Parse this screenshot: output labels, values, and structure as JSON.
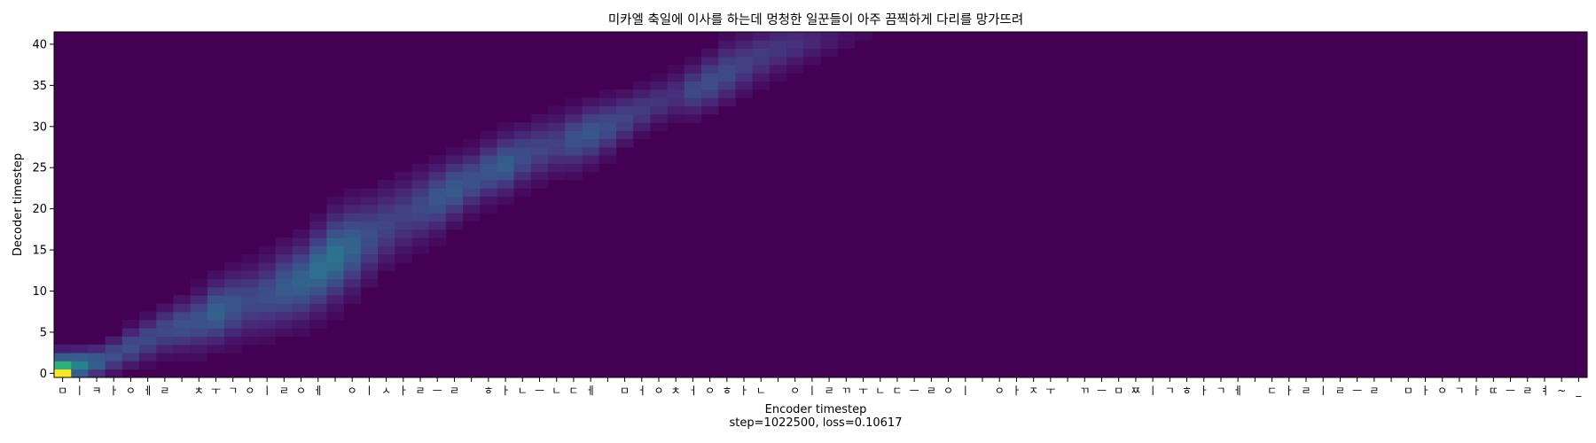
{
  "chart_data": {
    "type": "heatmap",
    "title": "미카엘 축일에 이사를 하는데 멍청한 일꾼들이 아주 끔찍하게 다리를 망가뜨려",
    "xlabel": "Encoder timestep",
    "ylabel": "Decoder timestep",
    "footer": "step=1022500, loss=0.10617",
    "colormap": "viridis",
    "background_color": "#440154",
    "peak_color": "#fde725",
    "ylim": [
      0,
      42
    ],
    "yticks": [
      0,
      5,
      10,
      15,
      20,
      25,
      30,
      35,
      40
    ],
    "x_tokens": [
      "ㅁ",
      "ㅣ",
      "ㅋ",
      "ㅏ",
      "ㅇ",
      "ㅔ",
      "ㄹ",
      " ",
      "ㅊ",
      "ㅜ",
      "ㄱ",
      "ㅇ",
      "ㅣ",
      "ㄹ",
      "ㅇ",
      "ㅔ",
      " ",
      "ㅇ",
      "ㅣ",
      "ㅅ",
      "ㅏ",
      "ㄹ",
      "ㅡ",
      "ㄹ",
      " ",
      "ㅎ",
      "ㅏ",
      "ㄴ",
      "ㅡ",
      "ㄴ",
      "ㄷ",
      "ㅔ",
      " ",
      "ㅁ",
      "ㅓ",
      "ㅇ",
      "ㅊ",
      "ㅓ",
      "ㅇ",
      "ㅎ",
      "ㅏ",
      "ㄴ",
      " ",
      "ㅇ",
      "ㅣ",
      "ㄹ",
      "ㄲ",
      "ㅜ",
      "ㄴ",
      "ㄷ",
      "ㅡ",
      "ㄹ",
      "ㅇ",
      "ㅣ",
      " ",
      "ㅇ",
      "ㅏ",
      "ㅈ",
      "ㅜ",
      " ",
      "ㄲ",
      "ㅡ",
      "ㅁ",
      "ㅉ",
      "ㅣ",
      "ㄱ",
      "ㅎ",
      "ㅏ",
      "ㄱ",
      "ㅔ",
      " ",
      "ㄷ",
      "ㅏ",
      "ㄹ",
      "ㅣ",
      "ㄹ",
      "ㅡ",
      "ㄹ",
      " ",
      "ㅁ",
      "ㅏ",
      "ㅇ",
      "ㄱ",
      "ㅏ",
      "ㄸ",
      "ㅡ",
      "ㄹ",
      "ㅕ",
      "~",
      "_"
    ],
    "alignment_path": [
      [
        0,
        0.0
      ],
      [
        1,
        1.0
      ],
      [
        2,
        1.4
      ],
      [
        3,
        2.2
      ],
      [
        4,
        3.2
      ],
      [
        5,
        4.2
      ],
      [
        6,
        5.2
      ],
      [
        7,
        5.8
      ],
      [
        8,
        6.4
      ],
      [
        9,
        7.4
      ],
      [
        10,
        8.2
      ],
      [
        11,
        8.8
      ],
      [
        12,
        9.4
      ],
      [
        13,
        10.4
      ],
      [
        14,
        11.2
      ],
      [
        15,
        12.6
      ],
      [
        16,
        14.2
      ],
      [
        17,
        15.4
      ],
      [
        18,
        16.6
      ],
      [
        19,
        18.0
      ],
      [
        20,
        19.2
      ],
      [
        21,
        20.2
      ],
      [
        22,
        21.2
      ],
      [
        23,
        22.4
      ],
      [
        24,
        23.4
      ],
      [
        25,
        24.6
      ],
      [
        26,
        25.4
      ],
      [
        27,
        26.4
      ],
      [
        28,
        27.2
      ],
      [
        29,
        27.8
      ],
      [
        30,
        28.4
      ],
      [
        31,
        29.2
      ],
      [
        32,
        30.0
      ],
      [
        33,
        31.0
      ],
      [
        34,
        32.0
      ],
      [
        35,
        33.0
      ],
      [
        36,
        33.8
      ],
      [
        37,
        34.4
      ],
      [
        38,
        35.4
      ],
      [
        39,
        36.6
      ],
      [
        40,
        37.6
      ],
      [
        41,
        38.6
      ],
      [
        42,
        39.4
      ],
      [
        43,
        40.0
      ],
      [
        44,
        40.4
      ],
      [
        45,
        40.8
      ],
      [
        46,
        41.0
      ],
      [
        47,
        41.0
      ],
      [
        48,
        41.0
      ],
      [
        49,
        41.0
      ],
      [
        50,
        41.0
      ],
      [
        51,
        41.0
      ],
      [
        52,
        41.0
      ],
      [
        53,
        41.0
      ],
      [
        54,
        41.0
      ],
      [
        55,
        41.0
      ],
      [
        56,
        41.0
      ],
      [
        57,
        41.0
      ],
      [
        58,
        41.0
      ],
      [
        59,
        41.0
      ]
    ],
    "alignment_width": [
      2.0,
      1.6,
      1.6,
      1.8,
      2.0,
      2.2,
      2.4,
      2.6,
      3.0,
      3.2,
      3.4,
      3.6,
      3.8,
      4.0,
      4.0,
      4.2,
      4.4,
      4.4,
      4.2,
      4.0,
      3.8,
      3.6,
      3.4,
      3.2,
      3.0,
      3.0,
      3.0,
      3.0,
      3.0,
      3.0,
      3.0,
      3.0,
      2.8,
      2.6,
      2.4,
      2.2,
      2.4,
      2.6,
      2.8,
      3.0,
      3.0,
      2.8,
      2.6,
      2.4,
      2.2,
      2.0,
      1.8,
      1.6,
      1.4,
      1.2,
      1.0,
      1.0,
      1.0,
      1.0,
      1.0,
      1.0,
      1.0,
      1.0,
      1.0,
      1.0
    ],
    "alignment_strength": [
      1.0,
      0.55,
      0.4,
      0.3,
      0.3,
      0.28,
      0.28,
      0.32,
      0.32,
      0.4,
      0.34,
      0.28,
      0.3,
      0.36,
      0.4,
      0.46,
      0.48,
      0.4,
      0.3,
      0.26,
      0.24,
      0.28,
      0.34,
      0.36,
      0.32,
      0.34,
      0.38,
      0.3,
      0.26,
      0.24,
      0.32,
      0.34,
      0.3,
      0.26,
      0.22,
      0.2,
      0.18,
      0.28,
      0.3,
      0.28,
      0.24,
      0.22,
      0.2,
      0.18,
      0.14,
      0.1,
      0.06,
      0.04,
      0.02,
      0.01,
      0,
      0,
      0,
      0,
      0,
      0,
      0,
      0,
      0,
      0
    ]
  }
}
